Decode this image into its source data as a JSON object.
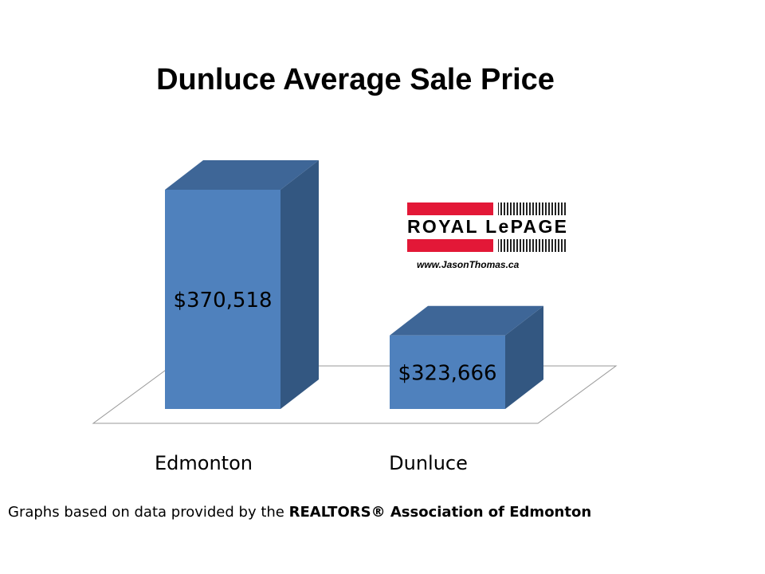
{
  "chart_data": {
    "type": "bar3d",
    "title": "Dunluce Average Sale Price",
    "categories": [
      "Edmonton",
      "Dunluce"
    ],
    "values": [
      370518,
      323666
    ],
    "value_labels": [
      "$370,518",
      "$323,666"
    ],
    "color": "#4f81bd",
    "ylim": [
      300000,
      380000
    ]
  },
  "logo": {
    "brand": "ROYAL LePAGE",
    "url": "www.JasonThomas.ca"
  },
  "footnote": {
    "text": "Graphs based on data provided by the",
    "source": "REALTORS® Association of Edmonton"
  }
}
